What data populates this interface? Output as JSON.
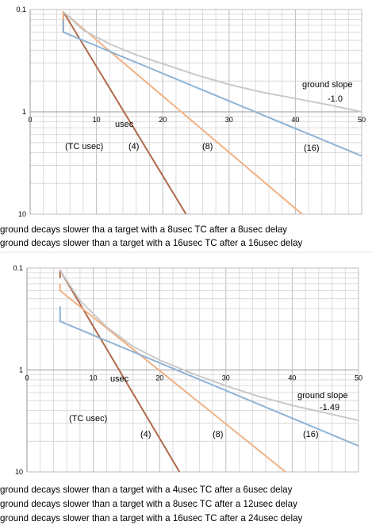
{
  "colors": {
    "gridline": "#d3d3d3",
    "axis": "#c8c8c8",
    "tc4": "#b0694a",
    "tc8": "#f2b183",
    "tc16": "#8eb4d6",
    "ground": "#c9c9c9"
  },
  "chart_data": [
    {
      "type": "line",
      "yscale": "log",
      "xlim": [
        0,
        50
      ],
      "ylim": [
        0.1,
        10
      ],
      "x_tick_labels": [
        "0",
        "10",
        "20",
        "30",
        "40",
        "50"
      ],
      "y_tick_labels": [
        "0.1",
        "1",
        "10"
      ],
      "annotations": {
        "xunit": "usec",
        "tc_header": "(TC usec)",
        "tc4": "(4)",
        "tc8": "(8)",
        "tc16": "(16)",
        "slope_title": "ground slope",
        "slope_value": "-1.0"
      },
      "series": [
        {
          "key": "tc4",
          "x": [
            5,
            5,
            23.5
          ],
          "y": [
            6,
            9.5,
            0.1
          ]
        },
        {
          "key": "tc8",
          "x": [
            5,
            5,
            41
          ],
          "y": [
            6,
            9.5,
            0.1
          ]
        },
        {
          "key": "tc16",
          "x": [
            5,
            5,
            50
          ],
          "y": [
            8,
            6,
            0.37
          ]
        },
        {
          "key": "ground",
          "x": [
            5,
            8,
            12,
            16,
            20,
            25,
            30,
            35,
            40,
            45,
            50
          ],
          "y": [
            9.5,
            6.3,
            4.6,
            3.6,
            2.95,
            2.3,
            1.85,
            1.55,
            1.35,
            1.17,
            1.0
          ]
        }
      ],
      "captions": [
        "ground decays slower tha a target with a 8usec TC after a 8usec delay",
        "ground decays slower than a target with a 16usec TC after a 16usec delay"
      ]
    },
    {
      "type": "line",
      "yscale": "log",
      "xlim": [
        0,
        50
      ],
      "ylim": [
        0.1,
        10
      ],
      "x_tick_labels": [
        "0",
        "10",
        "20",
        "30",
        "40",
        "50"
      ],
      "y_tick_labels": [
        "0.1",
        "1",
        "10"
      ],
      "annotations": {
        "xunit": "usec",
        "tc_header": "(TC usec)",
        "tc4": "(4)",
        "tc8": "(8)",
        "tc16": "(16)",
        "slope_title": "ground slope",
        "slope_value": "-1.49"
      },
      "series": [
        {
          "key": "tc4",
          "x": [
            5,
            5,
            23
          ],
          "y": [
            8,
            9.5,
            0.1
          ]
        },
        {
          "key": "tc8",
          "x": [
            5,
            5,
            39
          ],
          "y": [
            7,
            6,
            0.1
          ]
        },
        {
          "key": "tc16",
          "x": [
            5,
            5,
            50
          ],
          "y": [
            4.2,
            3.0,
            0.18
          ]
        },
        {
          "key": "ground",
          "x": [
            5,
            8,
            12,
            16,
            20,
            25,
            30,
            35,
            40,
            45,
            50
          ],
          "y": [
            9.5,
            4.8,
            2.65,
            1.7,
            1.25,
            0.92,
            0.7,
            0.55,
            0.45,
            0.38,
            0.32
          ]
        }
      ],
      "captions": [
        "ground decays slower than a target with a 4usec TC after a 6usec delay",
        "ground decays slower than a target with a 8usec TC after a 12usec delay",
        "ground decays slower than a target with a 16usec TC after a 24usec delay"
      ]
    }
  ]
}
